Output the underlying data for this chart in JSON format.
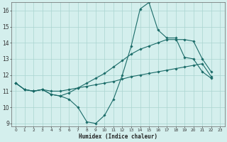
{
  "xlabel": "Humidex (Indice chaleur)",
  "xlim": [
    -0.5,
    23.5
  ],
  "ylim": [
    8.8,
    16.5
  ],
  "yticks": [
    9,
    10,
    11,
    12,
    13,
    14,
    15,
    16
  ],
  "xticks": [
    0,
    1,
    2,
    3,
    4,
    5,
    6,
    7,
    8,
    9,
    10,
    11,
    12,
    13,
    14,
    15,
    16,
    17,
    18,
    19,
    20,
    21,
    22,
    23
  ],
  "bg_color": "#d4efed",
  "grid_color": "#aad4d0",
  "line_color": "#1a6b68",
  "lines": [
    {
      "x": [
        0,
        1,
        2,
        3,
        4,
        5,
        6,
        7,
        8,
        9,
        10,
        11,
        12,
        13,
        14,
        15,
        16,
        17,
        18,
        19,
        20,
        21,
        22
      ],
      "y": [
        11.5,
        11.1,
        11.0,
        11.1,
        10.8,
        10.7,
        10.5,
        10.0,
        9.1,
        9.0,
        9.5,
        10.5,
        12.0,
        13.8,
        16.1,
        16.5,
        14.8,
        14.3,
        14.3,
        13.1,
        13.0,
        12.2,
        11.8
      ]
    },
    {
      "x": [
        0,
        1,
        2,
        3,
        4,
        5,
        6,
        7,
        8,
        9,
        10,
        11,
        12,
        13,
        14,
        15,
        16,
        17,
        18,
        19,
        20,
        21,
        22
      ],
      "y": [
        11.5,
        11.1,
        11.0,
        11.1,
        10.8,
        10.7,
        10.9,
        11.2,
        11.5,
        11.8,
        12.1,
        12.5,
        12.9,
        13.3,
        13.6,
        13.8,
        14.0,
        14.2,
        14.2,
        14.2,
        14.1,
        13.0,
        12.2
      ]
    },
    {
      "x": [
        0,
        1,
        2,
        3,
        4,
        5,
        6,
        7,
        8,
        9,
        10,
        11,
        12,
        13,
        14,
        15,
        16,
        17,
        18,
        19,
        20,
        21,
        22
      ],
      "y": [
        11.5,
        11.1,
        11.0,
        11.1,
        11.0,
        11.0,
        11.1,
        11.2,
        11.3,
        11.4,
        11.5,
        11.6,
        11.75,
        11.9,
        12.0,
        12.1,
        12.2,
        12.3,
        12.4,
        12.5,
        12.6,
        12.7,
        11.9
      ]
    }
  ]
}
